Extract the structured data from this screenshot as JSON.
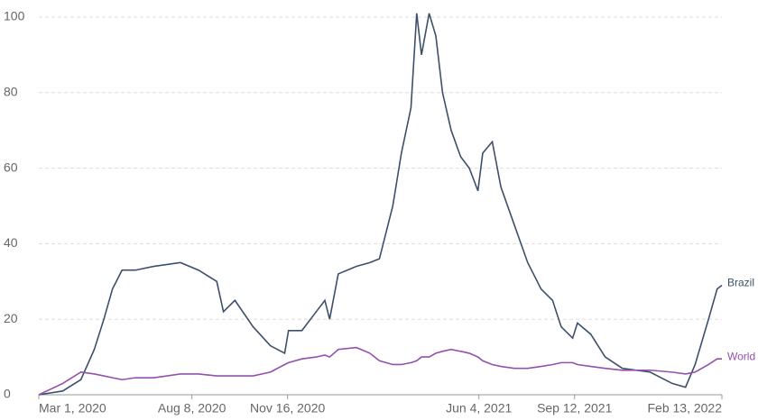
{
  "chart_data": {
    "type": "line",
    "x": [
      "2020-03-01",
      "2020-03-26",
      "2020-04-14",
      "2020-04-28",
      "2020-05-08",
      "2020-05-17",
      "2020-05-27",
      "2020-06-10",
      "2020-06-29",
      "2020-07-27",
      "2020-08-15",
      "2020-09-03",
      "2020-09-10",
      "2020-09-22",
      "2020-10-11",
      "2020-10-29",
      "2020-11-13",
      "2020-11-17",
      "2020-12-01",
      "2020-12-16",
      "2020-12-25",
      "2020-12-30",
      "2021-01-08",
      "2021-01-27",
      "2021-02-10",
      "2021-02-20",
      "2021-03-06",
      "2021-03-15",
      "2021-03-25",
      "2021-03-31",
      "2021-04-05",
      "2021-04-13",
      "2021-04-20",
      "2021-04-27",
      "2021-05-06",
      "2021-05-16",
      "2021-05-25",
      "2021-06-03",
      "2021-06-08",
      "2021-06-18",
      "2021-06-27",
      "2021-07-11",
      "2021-07-25",
      "2021-08-08",
      "2021-08-20",
      "2021-08-29",
      "2021-09-10",
      "2021-09-15",
      "2021-09-29",
      "2021-10-14",
      "2021-11-01",
      "2021-11-30",
      "2021-12-23",
      "2022-01-06",
      "2022-01-16",
      "2022-01-30",
      "2022-02-08",
      "2022-02-13"
    ],
    "series": [
      {
        "name": "Brazil",
        "color": "#3d5069",
        "values": [
          0,
          1,
          4,
          12,
          20,
          28,
          33,
          33,
          34,
          35,
          33,
          30,
          22,
          25,
          18,
          13,
          11,
          17,
          17,
          22,
          25,
          20,
          32,
          34,
          35,
          36,
          50,
          64,
          76,
          101,
          90,
          101,
          95,
          80,
          70,
          63,
          60,
          54,
          64,
          67,
          55,
          45,
          35,
          28,
          25,
          18,
          15,
          19,
          16,
          10,
          7,
          6,
          3,
          2,
          8,
          20,
          28,
          29
        ]
      },
      {
        "name": "World",
        "color": "#9450ad",
        "values": [
          0,
          3,
          6,
          5.5,
          5,
          4.5,
          4,
          4.5,
          4.5,
          5.5,
          5.5,
          5,
          5,
          5,
          5,
          6,
          8,
          8.5,
          9.5,
          10,
          10.5,
          10,
          12,
          12.5,
          11,
          9,
          8,
          8,
          8.5,
          9,
          10,
          10,
          11,
          11.5,
          12,
          11.5,
          11,
          10,
          9,
          8,
          7.5,
          7,
          7,
          7.5,
          8,
          8.5,
          8.5,
          8,
          7.5,
          7,
          6.5,
          6.5,
          6,
          5.5,
          6,
          8,
          9.5,
          9.5
        ]
      }
    ],
    "xlim": [
      "2020-03-01",
      "2022-02-13"
    ],
    "xticks": [
      {
        "value": "2020-03-01",
        "label": "Mar 1, 2020"
      },
      {
        "value": "2020-08-08",
        "label": "Aug 8, 2020"
      },
      {
        "value": "2020-11-16",
        "label": "Nov 16, 2020"
      },
      {
        "value": "2021-06-04",
        "label": "Jun 4, 2021"
      },
      {
        "value": "2021-09-12",
        "label": "Sep 12, 2021"
      },
      {
        "value": "2022-02-13",
        "label": "Feb 13, 2022"
      }
    ],
    "ylim": [
      0,
      100
    ],
    "yticks": [
      0,
      20,
      40,
      60,
      80,
      100
    ],
    "grid": true
  }
}
